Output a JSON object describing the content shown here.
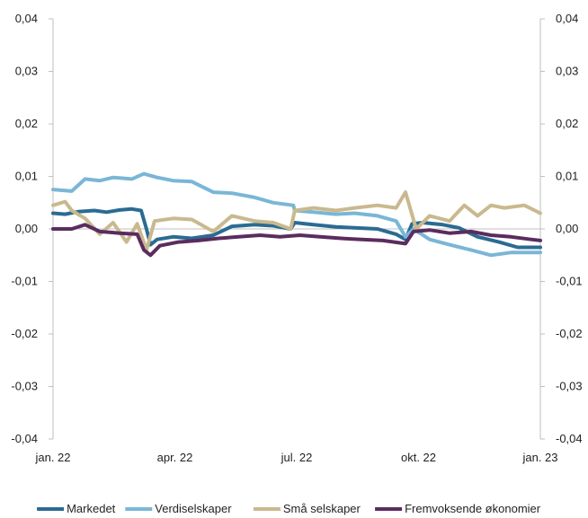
{
  "chart_data": {
    "type": "line",
    "x_tick_labels": [
      "jan. 22",
      "apr. 22",
      "jul. 22",
      "okt. 22",
      "jan. 23"
    ],
    "x_range": [
      "2022-01-01",
      "2023-01-01"
    ],
    "ylim": [
      -0.04,
      0.04
    ],
    "y_ticks": [
      0.04,
      0.03,
      0.02,
      0.01,
      0.0,
      -0.01,
      -0.02,
      -0.03,
      -0.04
    ],
    "y_tick_labels": [
      "0,04",
      "0,03",
      "0,02",
      "0,01",
      "0,00",
      "-0,01",
      "-0,02",
      "-0,03",
      "-0,04"
    ],
    "dual_y_axis": true,
    "grid": false,
    "legend_position": "bottom",
    "series": [
      {
        "name": "Markedet",
        "color": "#2a6b93",
        "points": [
          [
            "2022-01-01",
            0.003
          ],
          [
            "2022-01-10",
            0.0028
          ],
          [
            "2022-01-20",
            0.0033
          ],
          [
            "2022-02-01",
            0.0035
          ],
          [
            "2022-02-10",
            0.0032
          ],
          [
            "2022-02-20",
            0.0036
          ],
          [
            "2022-03-01",
            0.0038
          ],
          [
            "2022-03-08",
            0.0035
          ],
          [
            "2022-03-12",
            0.0
          ],
          [
            "2022-03-15",
            -0.003
          ],
          [
            "2022-03-20",
            -0.002
          ],
          [
            "2022-04-01",
            -0.0015
          ],
          [
            "2022-04-15",
            -0.0018
          ],
          [
            "2022-05-01",
            -0.0012
          ],
          [
            "2022-05-15",
            0.0005
          ],
          [
            "2022-06-01",
            0.0008
          ],
          [
            "2022-06-15",
            0.0006
          ],
          [
            "2022-06-28",
            0.0
          ],
          [
            "2022-07-01",
            0.0012
          ],
          [
            "2022-07-15",
            0.0008
          ],
          [
            "2022-08-01",
            0.0004
          ],
          [
            "2022-08-15",
            0.0002
          ],
          [
            "2022-09-01",
            0.0
          ],
          [
            "2022-09-15",
            -0.001
          ],
          [
            "2022-09-22",
            -0.002
          ],
          [
            "2022-09-27",
            0.001
          ],
          [
            "2022-10-05",
            0.0012
          ],
          [
            "2022-10-20",
            0.0008
          ],
          [
            "2022-11-01",
            0.0002
          ],
          [
            "2022-11-15",
            -0.0015
          ],
          [
            "2022-12-01",
            -0.0025
          ],
          [
            "2022-12-15",
            -0.0035
          ],
          [
            "2023-01-01",
            -0.0035
          ]
        ]
      },
      {
        "name": "Verdiselskaper",
        "color": "#7ab6d6",
        "points": [
          [
            "2022-01-01",
            0.0075
          ],
          [
            "2022-01-15",
            0.0072
          ],
          [
            "2022-01-25",
            0.0095
          ],
          [
            "2022-02-05",
            0.0092
          ],
          [
            "2022-02-15",
            0.0098
          ],
          [
            "2022-03-01",
            0.0095
          ],
          [
            "2022-03-10",
            0.0105
          ],
          [
            "2022-03-20",
            0.0098
          ],
          [
            "2022-04-01",
            0.0092
          ],
          [
            "2022-04-15",
            0.009
          ],
          [
            "2022-05-01",
            0.007
          ],
          [
            "2022-05-15",
            0.0068
          ],
          [
            "2022-06-01",
            0.006
          ],
          [
            "2022-06-15",
            0.005
          ],
          [
            "2022-06-30",
            0.0045
          ],
          [
            "2022-07-01",
            0.0035
          ],
          [
            "2022-07-15",
            0.0032
          ],
          [
            "2022-08-01",
            0.0028
          ],
          [
            "2022-08-15",
            0.003
          ],
          [
            "2022-09-01",
            0.0025
          ],
          [
            "2022-09-15",
            0.0015
          ],
          [
            "2022-09-22",
            -0.0015
          ],
          [
            "2022-09-28",
            0.0
          ],
          [
            "2022-10-10",
            -0.002
          ],
          [
            "2022-10-25",
            -0.003
          ],
          [
            "2022-11-10",
            -0.004
          ],
          [
            "2022-11-25",
            -0.005
          ],
          [
            "2022-12-10",
            -0.0045
          ],
          [
            "2022-12-25",
            -0.0045
          ],
          [
            "2023-01-01",
            -0.0045
          ]
        ]
      },
      {
        "name": "Små selskaper",
        "color": "#c9b98e",
        "points": [
          [
            "2022-01-01",
            0.0045
          ],
          [
            "2022-01-10",
            0.0052
          ],
          [
            "2022-01-15",
            0.0035
          ],
          [
            "2022-01-25",
            0.002
          ],
          [
            "2022-02-05",
            -0.001
          ],
          [
            "2022-02-15",
            0.0012
          ],
          [
            "2022-02-25",
            -0.0025
          ],
          [
            "2022-03-05",
            0.001
          ],
          [
            "2022-03-12",
            -0.004
          ],
          [
            "2022-03-18",
            0.0015
          ],
          [
            "2022-04-01",
            0.002
          ],
          [
            "2022-04-15",
            0.0018
          ],
          [
            "2022-05-01",
            -0.0005
          ],
          [
            "2022-05-15",
            0.0025
          ],
          [
            "2022-06-01",
            0.0015
          ],
          [
            "2022-06-15",
            0.0012
          ],
          [
            "2022-06-28",
            0.0
          ],
          [
            "2022-07-01",
            0.0035
          ],
          [
            "2022-07-15",
            0.004
          ],
          [
            "2022-08-01",
            0.0035
          ],
          [
            "2022-08-15",
            0.004
          ],
          [
            "2022-09-01",
            0.0045
          ],
          [
            "2022-09-15",
            0.004
          ],
          [
            "2022-09-22",
            0.007
          ],
          [
            "2022-09-30",
            0.0
          ],
          [
            "2022-10-10",
            0.0025
          ],
          [
            "2022-10-25",
            0.0015
          ],
          [
            "2022-11-05",
            0.0045
          ],
          [
            "2022-11-15",
            0.0025
          ],
          [
            "2022-11-25",
            0.0045
          ],
          [
            "2022-12-05",
            0.004
          ],
          [
            "2022-12-20",
            0.0045
          ],
          [
            "2023-01-01",
            0.003
          ]
        ]
      },
      {
        "name": "Fremvoksende økonomier",
        "color": "#5b2c5f",
        "points": [
          [
            "2022-01-01",
            0.0
          ],
          [
            "2022-01-15",
            0.0
          ],
          [
            "2022-01-25",
            0.0008
          ],
          [
            "2022-02-05",
            -0.0005
          ],
          [
            "2022-02-20",
            -0.0008
          ],
          [
            "2022-03-05",
            -0.001
          ],
          [
            "2022-03-10",
            -0.004
          ],
          [
            "2022-03-15",
            -0.005
          ],
          [
            "2022-03-22",
            -0.0032
          ],
          [
            "2022-04-05",
            -0.0025
          ],
          [
            "2022-04-20",
            -0.0022
          ],
          [
            "2022-05-05",
            -0.0018
          ],
          [
            "2022-05-20",
            -0.0015
          ],
          [
            "2022-06-05",
            -0.0012
          ],
          [
            "2022-06-20",
            -0.0015
          ],
          [
            "2022-07-05",
            -0.0012
          ],
          [
            "2022-07-20",
            -0.0015
          ],
          [
            "2022-08-05",
            -0.0018
          ],
          [
            "2022-08-20",
            -0.002
          ],
          [
            "2022-09-05",
            -0.0022
          ],
          [
            "2022-09-22",
            -0.0028
          ],
          [
            "2022-09-28",
            -0.0005
          ],
          [
            "2022-10-10",
            -0.0002
          ],
          [
            "2022-10-25",
            -0.0008
          ],
          [
            "2022-11-10",
            -0.0005
          ],
          [
            "2022-11-25",
            -0.0012
          ],
          [
            "2022-12-10",
            -0.0015
          ],
          [
            "2022-12-25",
            -0.002
          ],
          [
            "2023-01-01",
            -0.0022
          ]
        ]
      }
    ]
  }
}
